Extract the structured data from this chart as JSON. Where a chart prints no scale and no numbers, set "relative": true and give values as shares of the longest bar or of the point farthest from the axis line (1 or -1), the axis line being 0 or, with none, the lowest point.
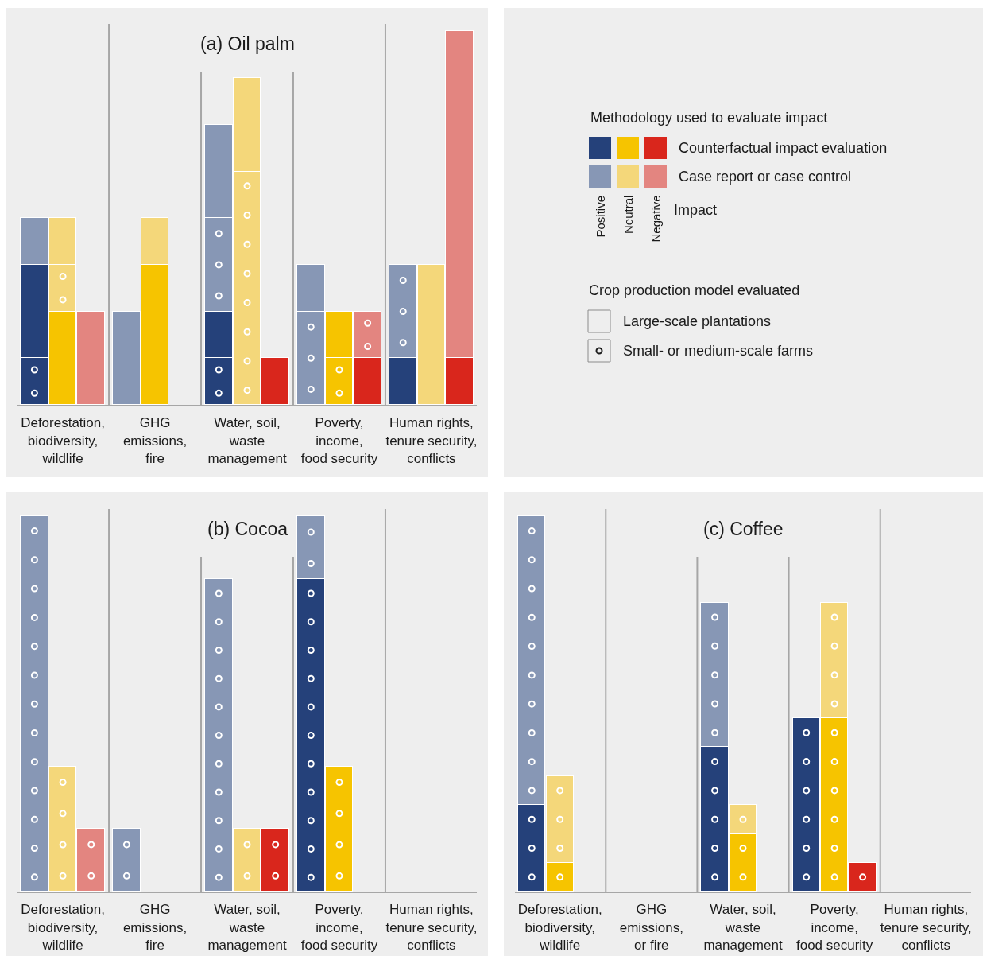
{
  "chart_data": [
    {
      "type": "bar",
      "title": "(a) Oil palm",
      "stacked": true,
      "relative": true,
      "categories": [
        null,
        "Deforestation,\nbiodiversity,\nwildlife",
        null,
        null,
        "GHG\nemissions,\nfire",
        null,
        null,
        "Water, soil,\nwaste\nmanagement",
        null,
        null,
        "Poverty,\nincome,\nfood security",
        null,
        null,
        "Human rights,\ntenure security,\nconflicts",
        null
      ],
      "series": [
        {
          "marker": "circle",
          "colors": [
            "#25417a",
            "#f6c400",
            "#d9261c",
            "#25417a",
            "#f6c400",
            "#d9261c",
            "#25417a",
            "#f6c400",
            "#d9261c",
            "#25417a",
            "#f6c400",
            "#d9261c",
            "#25417a",
            "#f6c400",
            "#d9261c"
          ],
          "values": [
            0.125,
            null,
            null,
            null,
            null,
            null,
            0.125,
            null,
            null,
            null,
            0.125,
            null,
            null,
            null,
            null
          ]
        },
        {
          "colors": [
            "#25417a",
            "#f6c400",
            "#d9261c",
            "#25417a",
            "#f6c400",
            "#d9261c",
            "#25417a",
            "#f6c400",
            "#d9261c",
            "#25417a",
            "#f6c400",
            "#d9261c",
            "#25417a",
            "#f6c400",
            "#d9261c"
          ],
          "values": [
            0.25,
            0.25,
            null,
            null,
            0.375,
            null,
            0.125,
            null,
            0.125,
            null,
            0.125,
            0.125,
            0.125,
            null,
            0.125
          ]
        },
        {
          "marker": "circle",
          "colors": [
            "#8797b5",
            "#f4d77a",
            "#e38580",
            "#8797b5",
            "#f4d77a",
            "#e38580",
            "#8797b5",
            "#f4d77a",
            "#e38580",
            "#8797b5",
            "#f4d77a",
            "#e38580",
            "#8797b5",
            "#f4d77a",
            "#e38580"
          ],
          "values": [
            null,
            0.125,
            null,
            null,
            null,
            null,
            0.25,
            0.625,
            null,
            0.25,
            null,
            0.125,
            0.25,
            null,
            null
          ]
        },
        {
          "colors": [
            "#8797b5",
            "#f4d77a",
            "#e38580",
            "#8797b5",
            "#f4d77a",
            "#e38580",
            "#8797b5",
            "#f4d77a",
            "#e38580",
            "#8797b5",
            "#f4d77a",
            "#e38580",
            "#8797b5",
            "#f4d77a",
            "#e38580"
          ],
          "values": [
            0.125,
            0.125,
            0.25,
            0.25,
            0.125,
            null,
            0.25,
            0.25,
            null,
            0.125,
            null,
            null,
            null,
            0.375,
            0.875
          ]
        }
      ]
    },
    {
      "type": "other",
      "legend_title": "Methodology used to evaluate impact",
      "categories": [
        "Positive",
        "Neutral",
        "Negative"
      ],
      "xlabel": "Impact",
      "annotations": [
        "Counterfactual impact evaluation",
        "Case report or case control",
        "Crop production model evaluated",
        "Large-scale plantations",
        "Small- or medium-scale farms"
      ]
    },
    {
      "type": "bar",
      "title": "(b) Cocoa",
      "stacked": true,
      "relative": true,
      "categories": [
        null,
        "Deforestation,\nbiodiversity,\nwildlife",
        null,
        null,
        "GHG\nemissions,\nfire",
        null,
        null,
        "Water, soil,\nwaste\nmanagement",
        null,
        null,
        "Poverty,\nincome,\nfood security",
        null,
        null,
        "Human rights,\ntenure security,\nconflicts",
        null
      ],
      "series": [
        {
          "marker": "circle",
          "colors": [
            "#25417a",
            "#f6c400",
            "#d9261c",
            "#25417a",
            "#f6c400",
            "#d9261c",
            "#25417a",
            "#f6c400",
            "#d9261c",
            "#25417a",
            "#f6c400",
            "#d9261c",
            "#25417a",
            "#f6c400",
            "#d9261c"
          ],
          "values": [
            null,
            null,
            null,
            null,
            null,
            null,
            null,
            null,
            0.167,
            0.833,
            0.333,
            null,
            null,
            null,
            null
          ]
        },
        {
          "marker": "circle",
          "colors": [
            "#8797b5",
            "#f4d77a",
            "#e38580",
            "#8797b5",
            "#f4d77a",
            "#e38580",
            "#8797b5",
            "#f4d77a",
            "#e38580",
            "#8797b5",
            "#f4d77a",
            "#e38580",
            "#8797b5",
            "#f4d77a",
            "#e38580"
          ],
          "values": [
            1,
            0.333,
            0.167,
            0.167,
            null,
            null,
            0.833,
            0.167,
            null,
            0.167,
            null,
            null,
            null,
            null,
            null
          ]
        }
      ]
    },
    {
      "type": "bar",
      "title": "(c) Coffee",
      "stacked": true,
      "relative": true,
      "categories": [
        null,
        "Deforestation,\nbiodiversity,\nwildlife",
        null,
        null,
        "GHG\nemissions,\nor fire",
        null,
        null,
        "Water, soil,\nwaste\nmanagement",
        null,
        null,
        "Poverty,\nincome,\nfood security",
        null,
        null,
        "Human rights,\ntenure security,\nconflicts",
        null
      ],
      "series": [
        {
          "marker": "circle",
          "colors": [
            "#25417a",
            "#f6c400",
            "#d9261c",
            "#25417a",
            "#f6c400",
            "#d9261c",
            "#25417a",
            "#f6c400",
            "#d9261c",
            "#25417a",
            "#f6c400",
            "#d9261c",
            "#25417a",
            "#f6c400",
            "#d9261c"
          ],
          "values": [
            0.231,
            0.077,
            null,
            null,
            null,
            null,
            0.385,
            0.154,
            null,
            0.462,
            0.462,
            0.077,
            null,
            null,
            null
          ]
        },
        {
          "marker": "circle",
          "colors": [
            "#8797b5",
            "#f4d77a",
            "#e38580",
            "#8797b5",
            "#f4d77a",
            "#e38580",
            "#8797b5",
            "#f4d77a",
            "#e38580",
            "#8797b5",
            "#f4d77a",
            "#e38580",
            "#8797b5",
            "#f4d77a",
            "#e38580"
          ],
          "values": [
            0.769,
            0.231,
            null,
            null,
            null,
            null,
            0.385,
            0.077,
            null,
            null,
            0.308,
            null,
            null,
            null,
            null
          ]
        }
      ]
    }
  ]
}
